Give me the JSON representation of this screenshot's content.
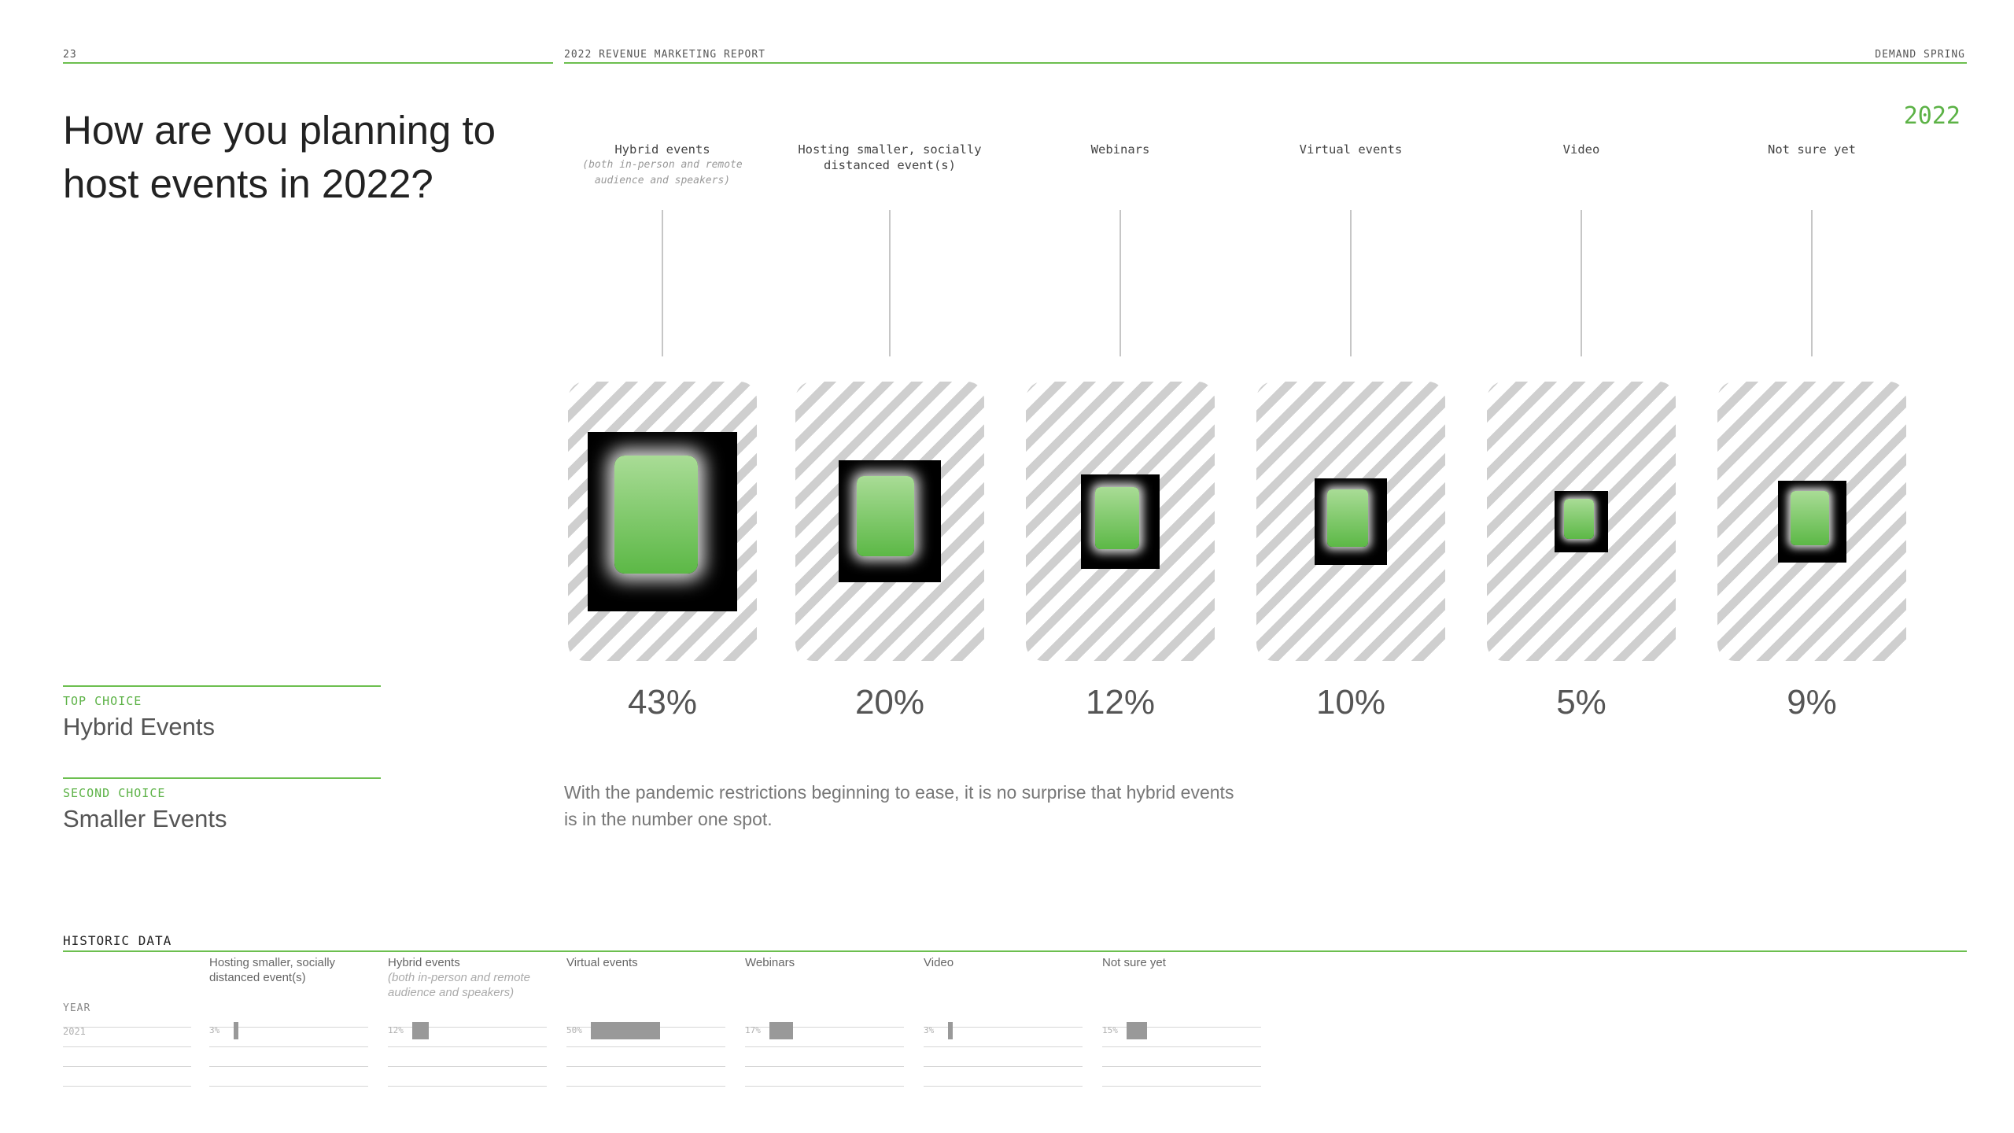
{
  "header": {
    "page_number": "23",
    "report_title": "2022 REVENUE MARKETING REPORT",
    "brand": "DEMAND SPRING",
    "year": "2022"
  },
  "title": "How are you planning to host events in 2022?",
  "chart_data": {
    "type": "bar",
    "title": "How are you planning to host events in 2022?",
    "categories": [
      "Hybrid events",
      "Hosting smaller, socially distanced event(s)",
      "Webinars",
      "Virtual events",
      "Video",
      "Not sure yet"
    ],
    "category_notes": [
      "(both in-person and remote audience and speakers)",
      "",
      "",
      "",
      "",
      ""
    ],
    "values": [
      43,
      20,
      12,
      10,
      5,
      9
    ],
    "value_labels": [
      "43%",
      "20%",
      "12%",
      "10%",
      "5%",
      "9%"
    ],
    "unit": "%"
  },
  "columns": [
    {
      "label": "Hybrid events",
      "sub": "(both in-person and remote audience and speakers)"
    },
    {
      "label": "Hosting smaller, socially distanced event(s)",
      "sub": ""
    },
    {
      "label": "Webinars",
      "sub": ""
    },
    {
      "label": "Virtual events",
      "sub": ""
    },
    {
      "label": "Video",
      "sub": ""
    },
    {
      "label": "Not sure yet",
      "sub": ""
    }
  ],
  "choices": {
    "top": {
      "label": "TOP CHOICE",
      "value": "Hybrid Events"
    },
    "second": {
      "label": "SECOND CHOICE",
      "value": "Smaller Events"
    }
  },
  "note": "With the pandemic restrictions beginning to ease, it is no surprise that hybrid events is in the number one spot.",
  "historic": {
    "title": "HISTORIC DATA",
    "year_header": "YEAR",
    "columns": [
      {
        "label": "Hosting smaller, socially distanced event(s)",
        "sub": ""
      },
      {
        "label": "Hybrid events",
        "sub": "(both in-person and remote audience and speakers)"
      },
      {
        "label": "Virtual events",
        "sub": ""
      },
      {
        "label": "Webinars",
        "sub": ""
      },
      {
        "label": "Video",
        "sub": ""
      },
      {
        "label": "Not sure yet",
        "sub": ""
      }
    ],
    "rows": [
      {
        "year": "2021",
        "values": [
          3,
          12,
          50,
          17,
          3,
          15
        ],
        "labels": [
          "3%",
          "12%",
          "50%",
          "17%",
          "3%",
          "15%"
        ]
      }
    ]
  },
  "colors": {
    "accent": "#5cb246",
    "card_stripe": "#cfcfcf",
    "bar": "#999999"
  }
}
